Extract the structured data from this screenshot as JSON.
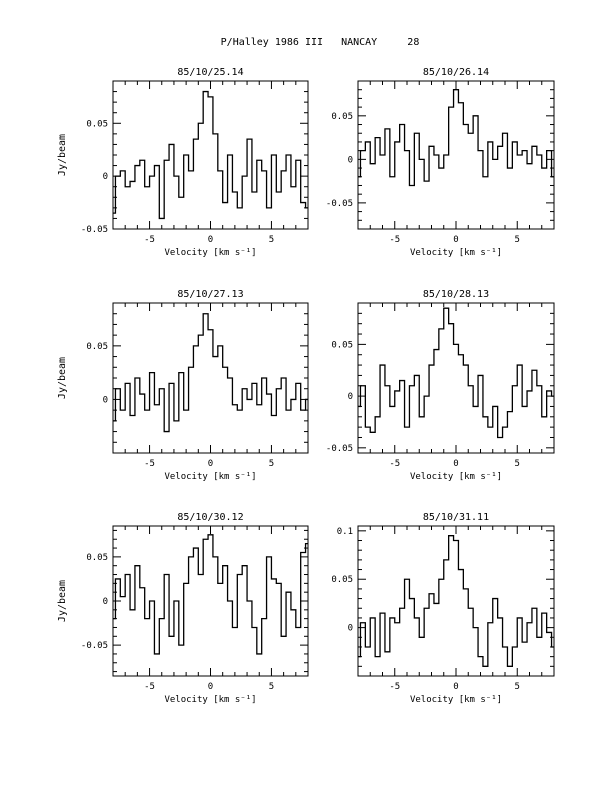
{
  "page_title": "P/Halley 1986 III   NANCAY     28",
  "chart_data": [
    {
      "type": "line",
      "step": true,
      "title": "85/10/25.14",
      "xlabel": "Velocity [km s⁻¹]",
      "ylabel": "Jy/beam",
      "xlim": [
        -8,
        8
      ],
      "ylim": [
        -0.05,
        0.09
      ],
      "xticks": [
        {
          "v": -5,
          "label": "-5"
        },
        {
          "v": 0,
          "label": "0"
        },
        {
          "v": 5,
          "label": "5"
        }
      ],
      "yticks": [
        {
          "v": -0.05,
          "label": "-0.05"
        },
        {
          "v": 0,
          "label": "0"
        },
        {
          "v": 0.05,
          "label": "0.05"
        }
      ],
      "series": [
        {
          "x": [
            -8.0,
            -7.6,
            -7.2,
            -6.8,
            -6.4,
            -6.0,
            -5.6,
            -5.2,
            -4.8,
            -4.4,
            -4.0,
            -3.6,
            -3.2,
            -2.8,
            -2.4,
            -2.0,
            -1.6,
            -1.2,
            -0.8,
            -0.4,
            0.0,
            0.4,
            0.8,
            1.2,
            1.6,
            2.0,
            2.4,
            2.8,
            3.2,
            3.6,
            4.0,
            4.4,
            4.8,
            5.2,
            5.6,
            6.0,
            6.4,
            6.8,
            7.2,
            7.6,
            8.0
          ],
          "y": [
            -0.035,
            0.0,
            0.005,
            -0.01,
            -0.005,
            0.01,
            0.015,
            -0.01,
            0.0,
            0.01,
            -0.04,
            0.015,
            0.03,
            0.0,
            -0.02,
            0.02,
            0.005,
            0.035,
            0.05,
            0.08,
            0.075,
            0.04,
            0.005,
            -0.025,
            0.02,
            -0.015,
            -0.03,
            0.0,
            0.035,
            -0.015,
            0.015,
            0.005,
            -0.03,
            0.02,
            -0.015,
            0.005,
            0.02,
            -0.01,
            0.015,
            -0.025,
            -0.03
          ]
        }
      ]
    },
    {
      "type": "line",
      "step": true,
      "title": "85/10/26.14",
      "xlabel": "Velocity [km s⁻¹]",
      "ylabel": "",
      "xlim": [
        -8,
        8
      ],
      "ylim": [
        -0.08,
        0.09
      ],
      "xticks": [
        {
          "v": -5,
          "label": "-5"
        },
        {
          "v": 0,
          "label": "0"
        },
        {
          "v": 5,
          "label": "5"
        }
      ],
      "yticks": [
        {
          "v": -0.05,
          "label": "-0.05"
        },
        {
          "v": 0,
          "label": "0"
        },
        {
          "v": 0.05,
          "label": "0.05"
        }
      ],
      "series": [
        {
          "x": [
            -8.0,
            -7.6,
            -7.2,
            -6.8,
            -6.4,
            -6.0,
            -5.6,
            -5.2,
            -4.8,
            -4.4,
            -4.0,
            -3.6,
            -3.2,
            -2.8,
            -2.4,
            -2.0,
            -1.6,
            -1.2,
            -0.8,
            -0.4,
            0.0,
            0.4,
            0.8,
            1.2,
            1.6,
            2.0,
            2.4,
            2.8,
            3.2,
            3.6,
            4.0,
            4.4,
            4.8,
            5.2,
            5.6,
            6.0,
            6.4,
            6.8,
            7.2,
            7.6,
            8.0
          ],
          "y": [
            -0.02,
            0.01,
            0.02,
            -0.005,
            0.025,
            0.005,
            0.035,
            -0.02,
            0.02,
            0.04,
            0.01,
            -0.03,
            0.03,
            0.0,
            -0.025,
            0.015,
            0.005,
            -0.01,
            0.005,
            0.06,
            0.08,
            0.065,
            0.04,
            0.03,
            0.05,
            0.01,
            -0.02,
            0.02,
            0.0,
            0.015,
            0.03,
            -0.01,
            0.02,
            0.005,
            0.01,
            -0.005,
            0.015,
            0.005,
            -0.01,
            0.01,
            -0.02
          ]
        }
      ]
    },
    {
      "type": "line",
      "step": true,
      "title": "85/10/27.13",
      "xlabel": "Velocity [km s⁻¹]",
      "ylabel": "Jy/beam",
      "xlim": [
        -8,
        8
      ],
      "ylim": [
        -0.05,
        0.09
      ],
      "xticks": [
        {
          "v": -5,
          "label": "-5"
        },
        {
          "v": 0,
          "label": "0"
        },
        {
          "v": 5,
          "label": "5"
        }
      ],
      "yticks": [
        {
          "v": 0,
          "label": "0"
        },
        {
          "v": 0.05,
          "label": "0.05"
        }
      ],
      "series": [
        {
          "x": [
            -8.0,
            -7.6,
            -7.2,
            -6.8,
            -6.4,
            -6.0,
            -5.6,
            -5.2,
            -4.8,
            -4.4,
            -4.0,
            -3.6,
            -3.2,
            -2.8,
            -2.4,
            -2.0,
            -1.6,
            -1.2,
            -0.8,
            -0.4,
            0.0,
            0.4,
            0.8,
            1.2,
            1.6,
            2.0,
            2.4,
            2.8,
            3.2,
            3.6,
            4.0,
            4.4,
            4.8,
            5.2,
            5.6,
            6.0,
            6.4,
            6.8,
            7.2,
            7.6,
            8.0
          ],
          "y": [
            -0.02,
            0.01,
            -0.01,
            0.015,
            -0.015,
            0.02,
            0.005,
            -0.01,
            0.025,
            -0.005,
            0.01,
            -0.03,
            0.015,
            -0.02,
            0.025,
            -0.01,
            0.03,
            0.05,
            0.06,
            0.08,
            0.065,
            0.04,
            0.05,
            0.03,
            0.02,
            -0.005,
            -0.01,
            0.01,
            0.0,
            0.015,
            -0.005,
            0.02,
            0.005,
            -0.015,
            0.01,
            0.02,
            -0.01,
            0.0,
            0.015,
            -0.01,
            0.0
          ]
        }
      ]
    },
    {
      "type": "line",
      "step": true,
      "title": "85/10/28.13",
      "xlabel": "Velocity [km s⁻¹]",
      "ylabel": "",
      "xlim": [
        -8,
        8
      ],
      "ylim": [
        -0.055,
        0.09
      ],
      "xticks": [
        {
          "v": -5,
          "label": "-5"
        },
        {
          "v": 0,
          "label": "0"
        },
        {
          "v": 5,
          "label": "5"
        }
      ],
      "yticks": [
        {
          "v": -0.05,
          "label": "-0.05"
        },
        {
          "v": 0,
          "label": "0"
        },
        {
          "v": 0.05,
          "label": "0.05"
        }
      ],
      "series": [
        {
          "x": [
            -8.0,
            -7.6,
            -7.2,
            -6.8,
            -6.4,
            -6.0,
            -5.6,
            -5.2,
            -4.8,
            -4.4,
            -4.0,
            -3.6,
            -3.2,
            -2.8,
            -2.4,
            -2.0,
            -1.6,
            -1.2,
            -0.8,
            -0.4,
            0.0,
            0.4,
            0.8,
            1.2,
            1.6,
            2.0,
            2.4,
            2.8,
            3.2,
            3.6,
            4.0,
            4.4,
            4.8,
            5.2,
            5.6,
            6.0,
            6.4,
            6.8,
            7.2,
            7.6,
            8.0
          ],
          "y": [
            -0.01,
            0.01,
            -0.03,
            -0.035,
            -0.02,
            0.03,
            0.01,
            -0.01,
            0.005,
            0.015,
            -0.03,
            0.01,
            0.02,
            -0.02,
            0.0,
            0.03,
            0.045,
            0.065,
            0.085,
            0.07,
            0.05,
            0.04,
            0.03,
            0.01,
            -0.01,
            0.02,
            -0.02,
            -0.03,
            -0.01,
            -0.04,
            -0.03,
            -0.015,
            0.01,
            0.03,
            -0.01,
            0.005,
            0.025,
            0.01,
            -0.02,
            0.005,
            0.0
          ]
        }
      ]
    },
    {
      "type": "line",
      "step": true,
      "title": "85/10/30.12",
      "xlabel": "Velocity [km s⁻¹]",
      "ylabel": "Jy/beam",
      "xlim": [
        -8,
        8
      ],
      "ylim": [
        -0.085,
        0.085
      ],
      "xticks": [
        {
          "v": -5,
          "label": "-5"
        },
        {
          "v": 0,
          "label": "0"
        },
        {
          "v": 5,
          "label": "5"
        }
      ],
      "yticks": [
        {
          "v": -0.05,
          "label": "-0.05"
        },
        {
          "v": 0,
          "label": "0"
        },
        {
          "v": 0.05,
          "label": "0.05"
        }
      ],
      "series": [
        {
          "x": [
            -8.0,
            -7.6,
            -7.2,
            -6.8,
            -6.4,
            -6.0,
            -5.6,
            -5.2,
            -4.8,
            -4.4,
            -4.0,
            -3.6,
            -3.2,
            -2.8,
            -2.4,
            -2.0,
            -1.6,
            -1.2,
            -0.8,
            -0.4,
            0.0,
            0.4,
            0.8,
            1.2,
            1.6,
            2.0,
            2.4,
            2.8,
            3.2,
            3.6,
            4.0,
            4.4,
            4.8,
            5.2,
            5.6,
            6.0,
            6.4,
            6.8,
            7.2,
            7.6,
            8.0
          ],
          "y": [
            -0.02,
            0.025,
            0.005,
            0.03,
            -0.01,
            0.04,
            0.015,
            -0.02,
            0.0,
            -0.06,
            -0.02,
            0.03,
            -0.04,
            0.0,
            -0.05,
            0.02,
            0.05,
            0.06,
            0.03,
            0.07,
            0.075,
            0.05,
            0.02,
            0.04,
            0.0,
            -0.03,
            0.03,
            0.04,
            0.0,
            -0.03,
            -0.06,
            -0.02,
            0.05,
            0.025,
            0.02,
            -0.04,
            0.01,
            -0.01,
            -0.03,
            0.055,
            0.065
          ]
        }
      ]
    },
    {
      "type": "line",
      "step": true,
      "title": "85/10/31.11",
      "xlabel": "Velocity [km s⁻¹]",
      "ylabel": "",
      "xlim": [
        -8,
        8
      ],
      "ylim": [
        -0.05,
        0.105
      ],
      "xticks": [
        {
          "v": -5,
          "label": "-5"
        },
        {
          "v": 0,
          "label": "0"
        },
        {
          "v": 5,
          "label": "5"
        }
      ],
      "yticks": [
        {
          "v": 0,
          "label": "0"
        },
        {
          "v": 0.05,
          "label": "0.05"
        },
        {
          "v": 0.1,
          "label": "0.1"
        }
      ],
      "series": [
        {
          "x": [
            -8.0,
            -7.6,
            -7.2,
            -6.8,
            -6.4,
            -6.0,
            -5.6,
            -5.2,
            -4.8,
            -4.4,
            -4.0,
            -3.6,
            -3.2,
            -2.8,
            -2.4,
            -2.0,
            -1.6,
            -1.2,
            -0.8,
            -0.4,
            0.0,
            0.4,
            0.8,
            1.2,
            1.6,
            2.0,
            2.4,
            2.8,
            3.2,
            3.6,
            4.0,
            4.4,
            4.8,
            5.2,
            5.6,
            6.0,
            6.4,
            6.8,
            7.2,
            7.6,
            8.0
          ],
          "y": [
            -0.03,
            0.005,
            -0.02,
            0.01,
            -0.03,
            0.015,
            -0.025,
            0.01,
            0.005,
            0.02,
            0.05,
            0.03,
            0.01,
            -0.01,
            0.02,
            0.035,
            0.025,
            0.05,
            0.07,
            0.095,
            0.09,
            0.06,
            0.04,
            0.02,
            0.0,
            -0.03,
            -0.04,
            0.005,
            0.03,
            0.01,
            -0.02,
            -0.04,
            -0.02,
            0.01,
            -0.015,
            0.005,
            0.02,
            -0.01,
            0.015,
            -0.005,
            -0.02
          ]
        }
      ]
    }
  ]
}
